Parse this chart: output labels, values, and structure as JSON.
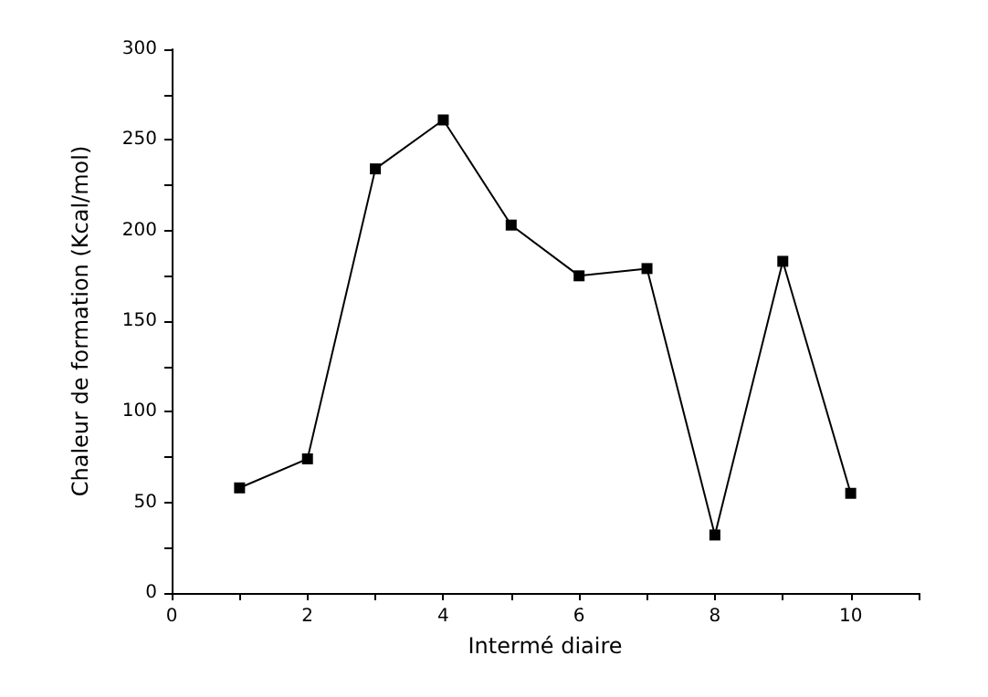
{
  "chart_data": {
    "type": "line",
    "xlabel": "Intermé diaire",
    "ylabel": "Chaleur de formation (Kcal/mol)",
    "x": [
      1,
      2,
      3,
      4,
      5,
      6,
      7,
      8,
      9,
      10
    ],
    "series": [
      {
        "color": "#000000",
        "values": [
          58,
          74,
          234,
          261,
          203,
          175,
          179,
          32,
          183,
          55
        ]
      }
    ],
    "xlim": [
      0,
      11
    ],
    "xticks": [
      0,
      {
        "value": 1,
        "label": null
      },
      2,
      {
        "value": 3,
        "label": null
      },
      4,
      {
        "value": 5,
        "label": null
      },
      6,
      {
        "value": 7,
        "label": null
      },
      8,
      {
        "value": 9,
        "label": null
      },
      10,
      {
        "value": 11,
        "label": null
      }
    ],
    "ylim": [
      0,
      300
    ],
    "yticks": [
      0,
      {
        "value": 25,
        "label": null
      },
      50,
      {
        "value": 75,
        "label": null
      },
      100,
      {
        "value": 125,
        "label": null
      },
      150,
      {
        "value": 175,
        "label": null
      },
      200,
      {
        "value": 225,
        "label": null
      },
      250,
      {
        "value": 275,
        "label": null
      },
      300
    ],
    "grid": false,
    "marker": "square",
    "line_style": "solid"
  }
}
